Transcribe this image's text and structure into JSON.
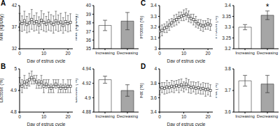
{
  "chart_data": [
    {
      "type": "line",
      "title": "A",
      "x_label": "Day of estrus cycle",
      "y_label": "Milk (kg/Day)",
      "x": [
        0,
        1,
        2,
        3,
        4,
        5,
        6,
        7,
        8,
        9,
        10,
        11,
        12,
        13,
        14,
        15,
        16,
        17,
        18,
        19,
        20,
        21
      ],
      "values": [
        38.2,
        37.8,
        38.5,
        37.6,
        38.0,
        38.8,
        37.9,
        38.3,
        37.5,
        38.6,
        38.1,
        37.7,
        38.4,
        38.0,
        37.6,
        38.5,
        37.9,
        38.2,
        37.4,
        38.3,
        37.8,
        38.1
      ],
      "errors": [
        2.0,
        1.8,
        2.2,
        1.9,
        2.1,
        2.3,
        1.8,
        2.0,
        1.9,
        2.2,
        2.0,
        1.8,
        2.1,
        1.9,
        2.0,
        2.2,
        1.9,
        2.0,
        1.8,
        2.1,
        1.9,
        2.0
      ],
      "xlim": [
        0,
        22
      ],
      "xticks": [
        0,
        10,
        20
      ],
      "ylim": [
        32,
        42
      ],
      "yticks": [
        32,
        37,
        42
      ],
      "color": "#333333",
      "marker": "square"
    },
    {
      "type": "bar",
      "y_label": "Milk (kg/Day)",
      "categories": [
        "Increasing",
        "Decreasing"
      ],
      "values": [
        37.7,
        38.2
      ],
      "errors": [
        0.6,
        1.0
      ],
      "ylim": [
        35,
        40
      ],
      "yticks": [
        35,
        36,
        37,
        38,
        39,
        40
      ],
      "colors": [
        "#ffffff",
        "#a6a6a6"
      ]
    },
    {
      "type": "line",
      "title": "B",
      "x_label": "Day of estrus cycle",
      "y_label": "Lactose (%)",
      "x": [
        0,
        1,
        2,
        3,
        4,
        5,
        6,
        7,
        8,
        9,
        10,
        11,
        12,
        13,
        14,
        15,
        16,
        17,
        18,
        19,
        20,
        21
      ],
      "values": [
        4.93,
        4.92,
        4.94,
        4.93,
        4.95,
        4.96,
        4.95,
        4.94,
        4.93,
        4.94,
        4.92,
        4.93,
        4.92,
        4.91,
        4.92,
        4.93,
        4.92,
        4.91,
        4.92,
        4.91,
        4.92,
        4.92
      ],
      "errors": [
        0.03,
        0.03,
        0.03,
        0.02,
        0.03,
        0.03,
        0.02,
        0.03,
        0.02,
        0.03,
        0.03,
        0.02,
        0.03,
        0.02,
        0.03,
        0.02,
        0.03,
        0.02,
        0.03,
        0.02,
        0.03,
        0.03
      ],
      "xlim": [
        0,
        22
      ],
      "xticks": [
        0,
        10,
        20
      ],
      "ylim": [
        4.8,
        5.0
      ],
      "yticks": [
        4.8,
        4.9,
        5
      ],
      "color": "#333333",
      "marker": "square"
    },
    {
      "type": "bar",
      "y_label": "Lactose (%)",
      "categories": [
        "Increasing",
        "Decreasing"
      ],
      "values": [
        4.925,
        4.91
      ],
      "errors": [
        0.005,
        0.008
      ],
      "ylim": [
        4.88,
        4.94
      ],
      "yticks": [
        4.88,
        4.9,
        4.92,
        4.94
      ],
      "colors": [
        "#ffffff",
        "#a6a6a6"
      ]
    },
    {
      "type": "line",
      "title": "C",
      "x_label": "Day of estrus cycle",
      "y_label": "Protein (%)",
      "x": [
        0,
        1,
        2,
        3,
        4,
        5,
        6,
        7,
        8,
        9,
        10,
        11,
        12,
        13,
        14,
        15,
        16,
        17,
        18,
        19,
        20,
        21
      ],
      "values": [
        3.16,
        3.17,
        3.19,
        3.2,
        3.22,
        3.24,
        3.26,
        3.27,
        3.29,
        3.3,
        3.31,
        3.32,
        3.3,
        3.28,
        3.27,
        3.25,
        3.23,
        3.22,
        3.21,
        3.22,
        3.23,
        3.22
      ],
      "errors": [
        0.05,
        0.05,
        0.04,
        0.05,
        0.05,
        0.04,
        0.05,
        0.05,
        0.05,
        0.04,
        0.05,
        0.05,
        0.05,
        0.04,
        0.05,
        0.05,
        0.04,
        0.05,
        0.05,
        0.04,
        0.05,
        0.05
      ],
      "xlim": [
        0,
        22
      ],
      "xticks": [
        0,
        10,
        20
      ],
      "ylim": [
        3.0,
        3.4
      ],
      "yticks": [
        3,
        3.1,
        3.2,
        3.3,
        3.4
      ],
      "color": "#333333",
      "marker": "square"
    },
    {
      "type": "bar",
      "y_label": "Protein (%)",
      "categories": [
        "Increasing",
        "Decreasing"
      ],
      "values": [
        3.3,
        3.355
      ],
      "errors": [
        0.012,
        0.02
      ],
      "ylim": [
        3.2,
        3.4
      ],
      "yticks": [
        3.2,
        3.25,
        3.3,
        3.35,
        3.4
      ],
      "colors": [
        "#ffffff",
        "#a6a6a6"
      ],
      "annotations": [
        {
          "text": "*",
          "category": "Decreasing"
        }
      ]
    },
    {
      "type": "line",
      "title": "D",
      "x_label": "Day of estrus cycle",
      "y_label": "Fat (%)",
      "x": [
        0,
        1,
        2,
        3,
        4,
        5,
        6,
        7,
        8,
        9,
        10,
        11,
        12,
        13,
        14,
        15,
        16,
        17,
        18,
        19,
        20,
        21
      ],
      "values": [
        3.72,
        3.74,
        3.73,
        3.75,
        3.74,
        3.76,
        3.75,
        3.77,
        3.76,
        3.78,
        3.75,
        3.79,
        3.76,
        3.74,
        3.75,
        3.73,
        3.74,
        3.72,
        3.73,
        3.71,
        3.72,
        3.7
      ],
      "errors": [
        0.08,
        0.07,
        0.08,
        0.09,
        0.07,
        0.08,
        0.08,
        0.07,
        0.09,
        0.08,
        0.07,
        0.08,
        0.09,
        0.08,
        0.07,
        0.08,
        0.08,
        0.07,
        0.08,
        0.09,
        0.08,
        0.08
      ],
      "xlim": [
        0,
        22
      ],
      "xticks": [
        0,
        10,
        20
      ],
      "ylim": [
        3.4,
        4.0
      ],
      "yticks": [
        3.4,
        3.6,
        3.8,
        4
      ],
      "color": "#333333",
      "marker": "square"
    },
    {
      "type": "bar",
      "y_label": "Fat (%)",
      "categories": [
        "Increasing",
        "Decreasing"
      ],
      "values": [
        3.745,
        3.73
      ],
      "errors": [
        0.025,
        0.04
      ],
      "ylim": [
        3.6,
        3.8
      ],
      "yticks": [
        3.6,
        3.7,
        3.8
      ],
      "colors": [
        "#ffffff",
        "#a6a6a6"
      ]
    }
  ]
}
